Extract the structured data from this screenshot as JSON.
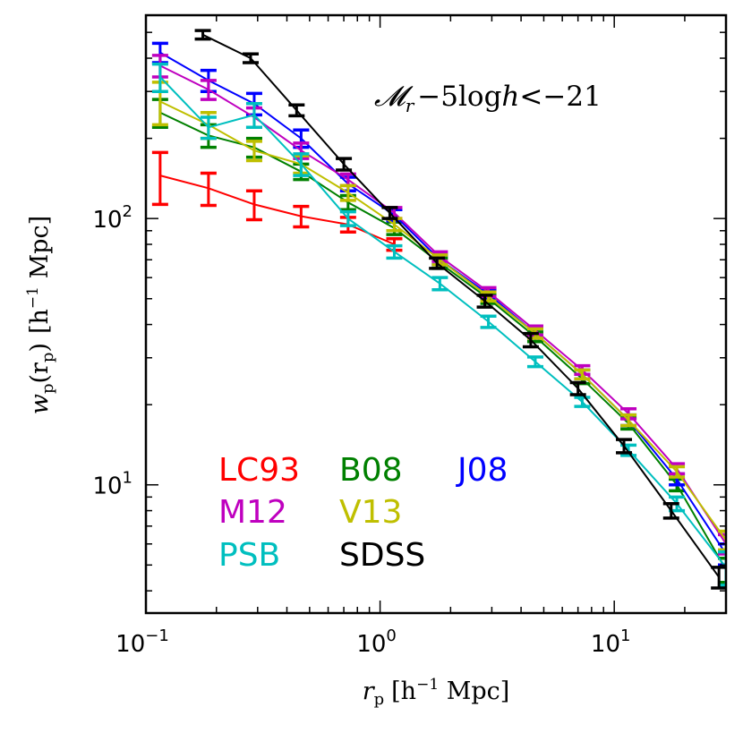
{
  "chart_data": {
    "type": "line",
    "xscale": "log",
    "yscale": "log",
    "xlim": [
      0.1,
      30
    ],
    "ylim": [
      3.3,
      580
    ],
    "xlabel": {
      "main": "r",
      "sub": "p",
      "unit": "[h",
      "unit_exp": "−1",
      "unit_tail": " Mpc]"
    },
    "ylabel": {
      "main": "w",
      "sub": "p",
      "args": "(r",
      "args_sub": "p",
      "args_tail": ")",
      "unit": "[h",
      "unit_exp": "−1",
      "unit_tail": " Mpc]"
    },
    "xticks": [
      {
        "value": 0.1,
        "base": "10",
        "exp": "−1"
      },
      {
        "value": 1,
        "base": "10",
        "exp": "0"
      },
      {
        "value": 10,
        "base": "10",
        "exp": "1"
      }
    ],
    "yticks": [
      {
        "value": 10,
        "base": "10",
        "exp": "1"
      },
      {
        "value": 100,
        "base": "10",
        "exp": "2"
      }
    ],
    "annotation": {
      "text": "𝓜",
      "sub": "r",
      "rest": "−5log",
      "h": "h",
      "cmp": "<−21"
    },
    "series": [
      {
        "name": "LC93",
        "color": "#ff0000",
        "x": [
          0.115,
          0.185,
          0.29,
          0.46,
          0.73,
          1.15
        ],
        "y": [
          145,
          130,
          113,
          102,
          95,
          80
        ],
        "err": [
          32,
          18,
          14,
          9,
          6,
          4
        ],
        "line": true
      },
      {
        "name": "B08",
        "color": "#008000",
        "x": [
          0.115,
          0.185,
          0.29,
          0.46,
          0.73,
          1.15,
          1.8,
          2.9,
          4.6,
          7.3,
          11.5,
          18.5,
          30
        ],
        "y": [
          250,
          205,
          185,
          150,
          115,
          92,
          68,
          50,
          36,
          25,
          17,
          10,
          4.8
        ],
        "err": [
          30,
          20,
          15,
          10,
          7,
          5,
          3,
          2,
          1.5,
          1.0,
          0.8,
          0.5,
          0.5
        ],
        "line": true
      },
      {
        "name": "J08",
        "color": "#0000ff",
        "x": [
          0.115,
          0.185,
          0.29,
          0.46,
          0.73,
          1.15,
          1.8,
          2.9,
          4.6,
          7.3,
          11.5,
          18.5,
          30
        ],
        "y": [
          420,
          330,
          270,
          200,
          135,
          103,
          70,
          52,
          37,
          26,
          17.5,
          10.5,
          5.5
        ],
        "err": [
          35,
          30,
          25,
          15,
          8,
          5,
          3,
          2,
          1.5,
          1.0,
          0.8,
          0.5,
          0.5
        ],
        "line": true
      },
      {
        "name": "M12",
        "color": "#bf00bf",
        "x": [
          0.115,
          0.185,
          0.29,
          0.46,
          0.73,
          1.15,
          1.8,
          2.9,
          4.6,
          7.3,
          11.5,
          18.5,
          30
        ],
        "y": [
          375,
          305,
          240,
          180,
          140,
          105,
          72,
          53,
          38,
          27,
          18.5,
          11.5,
          6.0
        ],
        "err": [
          35,
          25,
          20,
          12,
          7,
          5,
          3,
          2,
          1.5,
          1.0,
          0.8,
          0.5,
          0.5
        ],
        "line": true
      },
      {
        "name": "V13",
        "color": "#bfbf00",
        "x": [
          0.115,
          0.185,
          0.29,
          0.46,
          0.73,
          1.15,
          1.8,
          2.9,
          4.6,
          7.3,
          11.5,
          18.5,
          30
        ],
        "y": [
          275,
          225,
          180,
          160,
          125,
          95,
          70,
          51,
          37,
          26,
          17.5,
          11.2,
          6.2
        ],
        "err": [
          50,
          25,
          15,
          12,
          8,
          5,
          3,
          2,
          1.5,
          1.0,
          0.8,
          0.5,
          0.5
        ],
        "line": true
      },
      {
        "name": "PSB",
        "color": "#00bfbf",
        "x": [
          0.115,
          0.185,
          0.29,
          0.46,
          0.73,
          1.15,
          1.8,
          2.9,
          4.6,
          7.3,
          11.5,
          18.5,
          30
        ],
        "y": [
          340,
          220,
          245,
          160,
          100,
          75,
          57,
          41,
          29,
          20.5,
          13.5,
          8.5,
          4.9
        ],
        "err": [
          40,
          20,
          25,
          15,
          6,
          4,
          3,
          2,
          1.2,
          0.8,
          0.6,
          0.5,
          0.7
        ],
        "line": true
      },
      {
        "name": "SDSS",
        "color": "#000000",
        "x": [
          0.175,
          0.28,
          0.44,
          0.7,
          1.1,
          1.75,
          2.8,
          4.4,
          7.0,
          11.0,
          17.5,
          28
        ],
        "y": [
          490,
          400,
          255,
          160,
          105,
          68,
          49,
          35,
          23,
          14,
          8,
          4.5
        ],
        "err": [
          18,
          15,
          12,
          8,
          5,
          3,
          2.5,
          2,
          1.2,
          0.8,
          0.5,
          0.4
        ],
        "line": true
      }
    ],
    "legend": [
      {
        "name": "LC93",
        "color": "#ff0000"
      },
      {
        "name": "B08",
        "color": "#008000"
      },
      {
        "name": "J08",
        "color": "#0000ff"
      },
      {
        "name": "M12",
        "color": "#bf00bf"
      },
      {
        "name": "V13",
        "color": "#bfbf00"
      },
      {
        "name": "PSB",
        "color": "#00bfbf"
      },
      {
        "name": "SDSS",
        "color": "#000000"
      }
    ]
  }
}
